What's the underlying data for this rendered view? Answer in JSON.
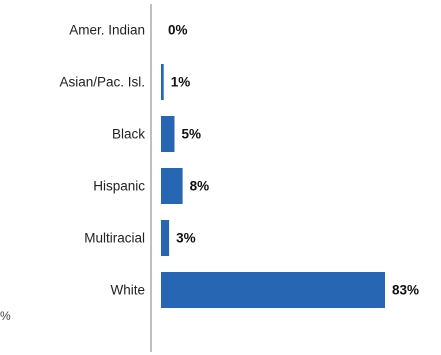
{
  "chart_data": {
    "type": "bar",
    "orientation": "horizontal",
    "categories": [
      "Amer. Indian",
      "Asian/Pac. Isl.",
      "Black",
      "Hispanic",
      "Multiracial",
      "White"
    ],
    "values": [
      0,
      1,
      5,
      8,
      3,
      83
    ],
    "value_labels": [
      "0%",
      "1%",
      "5%",
      "8%",
      "3%",
      "83%"
    ],
    "xlim": [
      0,
      100
    ],
    "grid": false,
    "legend": "none",
    "colors": {
      "bar": "#2766b2",
      "axis": "#aaaaaa"
    }
  },
  "edge_text": "%"
}
